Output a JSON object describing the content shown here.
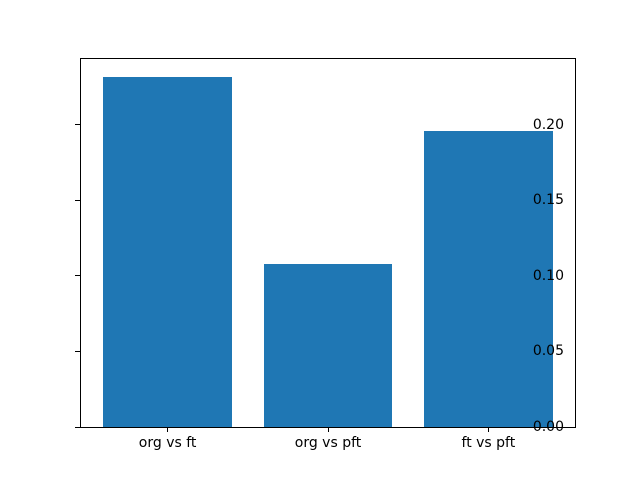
{
  "figure": {
    "background_color": "#ffffff"
  },
  "chart_data": {
    "type": "bar",
    "title": "",
    "xlabel": "",
    "ylabel": "",
    "categories": [
      "org vs ft",
      "org vs pft",
      "ft vs pft"
    ],
    "values": [
      0.232,
      0.108,
      0.196
    ],
    "bar_color": "#1f77b4",
    "bar_width": 0.8,
    "xlim": [
      -0.54,
      2.54
    ],
    "ylim": [
      0,
      0.2436
    ],
    "yticks": [
      {
        "value": 0.0,
        "label": "0.00"
      },
      {
        "value": 0.05,
        "label": "0.05"
      },
      {
        "value": 0.1,
        "label": "0.10"
      },
      {
        "value": 0.15,
        "label": "0.15"
      },
      {
        "value": 0.2,
        "label": "0.20"
      }
    ],
    "grid": false,
    "legend": null,
    "spine_color": "#000000",
    "tick_label_color": "#000000"
  }
}
